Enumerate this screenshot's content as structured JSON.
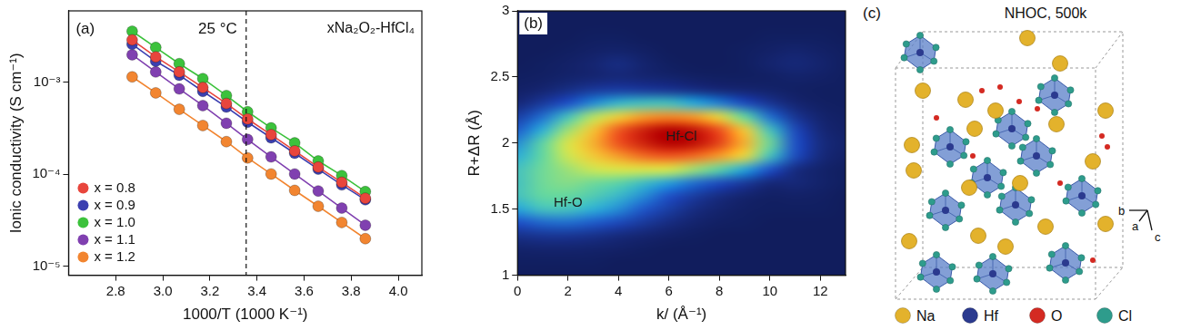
{
  "chart_data": [
    {
      "type": "line",
      "title": "(a)",
      "x_label": "1000/T (1000 K⁻¹)",
      "y_label": "Ionic conductivity (S cm⁻¹)",
      "annotations": [
        "25 °C",
        "xNa₂O₂-HfCl₄"
      ],
      "reference_line_x": 3.354,
      "x": [
        2.87,
        2.97,
        3.07,
        3.17,
        3.27,
        3.36,
        3.46,
        3.56,
        3.66,
        3.76,
        3.86
      ],
      "series": [
        {
          "name": "x = 0.8",
          "color": "#e8453c",
          "values": [
            0.0029,
            0.0019,
            0.0013,
            0.00088,
            0.00059,
            0.0004,
            0.00027,
            0.00018,
            0.00012,
            8.2e-05,
            5.5e-05
          ]
        },
        {
          "name": "x = 0.9",
          "color": "#3b3fb0",
          "values": [
            0.0026,
            0.0017,
            0.0012,
            0.0008,
            0.00054,
            0.00037,
            0.00025,
            0.00017,
            0.000114,
            7.7e-05,
            5.3e-05
          ]
        },
        {
          "name": "x = 1.0",
          "color": "#3cc23c",
          "values": [
            0.0036,
            0.0024,
            0.0016,
            0.0011,
            0.00072,
            0.00048,
            0.00032,
            0.00022,
            0.00014,
            9.7e-05,
            6.5e-05
          ]
        },
        {
          "name": "x = 1.1",
          "color": "#8040b0",
          "values": [
            0.002,
            0.0013,
            0.00085,
            0.00056,
            0.00036,
            0.00024,
            0.000155,
            0.000101,
            6.6e-05,
            4.3e-05,
            2.8e-05
          ]
        },
        {
          "name": "x = 1.2",
          "color": "#f28530",
          "values": [
            0.00115,
            0.00077,
            0.00051,
            0.00034,
            0.000227,
            0.000151,
            0.000101,
            6.7e-05,
            4.5e-05,
            3e-05,
            2e-05
          ]
        }
      ],
      "xlim": [
        2.6,
        4.1
      ],
      "xticks": [
        2.8,
        {
          "value": 3,
          "label": "3.0"
        },
        3.2,
        3.4,
        3.6,
        3.8,
        {
          "value": 4,
          "label": "4.0"
        }
      ],
      "ylim": [
        8e-06,
        0.006
      ],
      "yticks": [
        {
          "value": 1e-05,
          "label": "10⁻⁵"
        },
        {
          "value": 0.0001,
          "label": "10⁻⁴"
        },
        {
          "value": 0.001,
          "label": "10⁻³"
        }
      ],
      "log": "y",
      "grid": false,
      "legend": "lower left",
      "marker": "circle"
    },
    {
      "type": "heatmap",
      "title": "(b)",
      "x_label": "k/ (Å⁻¹)",
      "y_label": "R+ΔR (Å)",
      "x": [
        0,
        1,
        2,
        3,
        4,
        5,
        6,
        7,
        8,
        9,
        10,
        11,
        12,
        13
      ],
      "y": [
        1,
        1.1,
        1.2,
        1.3,
        1.4,
        1.5,
        1.6,
        1.7,
        1.8,
        1.9,
        2,
        2.1,
        2.2,
        2.3,
        2.4,
        2.5,
        2.6,
        2.7,
        2.8,
        2.9,
        3
      ],
      "cells": [
        [
          0.04,
          0.04,
          0.04,
          0.04,
          0.04,
          0.04,
          0.04,
          0.04,
          0.04,
          0.04,
          0.04,
          0.04,
          0.04,
          0.04
        ],
        [
          0.05,
          0.05,
          0.05,
          0.05,
          0.04,
          0.04,
          0.04,
          0.04,
          0.04,
          0.04,
          0.04,
          0.04,
          0.04,
          0.04
        ],
        [
          0.08,
          0.09,
          0.09,
          0.08,
          0.07,
          0.05,
          0.04,
          0.04,
          0.04,
          0.04,
          0.04,
          0.04,
          0.04,
          0.04
        ],
        [
          0.16,
          0.18,
          0.18,
          0.16,
          0.13,
          0.1,
          0.07,
          0.05,
          0.04,
          0.04,
          0.04,
          0.04,
          0.04,
          0.04
        ],
        [
          0.3,
          0.34,
          0.35,
          0.32,
          0.27,
          0.2,
          0.14,
          0.09,
          0.06,
          0.05,
          0.04,
          0.04,
          0.04,
          0.04
        ],
        [
          0.44,
          0.5,
          0.5,
          0.46,
          0.4,
          0.31,
          0.22,
          0.14,
          0.09,
          0.06,
          0.05,
          0.05,
          0.05,
          0.04
        ],
        [
          0.5,
          0.55,
          0.55,
          0.52,
          0.48,
          0.4,
          0.3,
          0.21,
          0.14,
          0.09,
          0.06,
          0.07,
          0.06,
          0.04
        ],
        [
          0.5,
          0.56,
          0.58,
          0.56,
          0.54,
          0.49,
          0.43,
          0.35,
          0.28,
          0.2,
          0.12,
          0.12,
          0.08,
          0.05
        ],
        [
          0.5,
          0.56,
          0.6,
          0.64,
          0.66,
          0.66,
          0.65,
          0.6,
          0.54,
          0.44,
          0.3,
          0.14,
          0.08,
          0.05
        ],
        [
          0.46,
          0.55,
          0.64,
          0.74,
          0.8,
          0.85,
          0.87,
          0.85,
          0.8,
          0.7,
          0.5,
          0.28,
          0.13,
          0.07
        ],
        [
          0.4,
          0.54,
          0.66,
          0.78,
          0.88,
          0.95,
          1,
          0.98,
          0.9,
          0.78,
          0.56,
          0.3,
          0.14,
          0.08
        ],
        [
          0.32,
          0.46,
          0.6,
          0.75,
          0.87,
          0.95,
          1,
          0.97,
          0.88,
          0.74,
          0.5,
          0.27,
          0.12,
          0.07
        ],
        [
          0.22,
          0.35,
          0.5,
          0.62,
          0.72,
          0.8,
          0.82,
          0.8,
          0.7,
          0.55,
          0.35,
          0.18,
          0.09,
          0.06
        ],
        [
          0.12,
          0.2,
          0.3,
          0.4,
          0.48,
          0.5,
          0.5,
          0.45,
          0.38,
          0.28,
          0.18,
          0.1,
          0.06,
          0.05
        ],
        [
          0.07,
          0.1,
          0.15,
          0.2,
          0.22,
          0.2,
          0.18,
          0.15,
          0.12,
          0.1,
          0.08,
          0.06,
          0.05,
          0.05
        ],
        [
          0.05,
          0.06,
          0.08,
          0.1,
          0.12,
          0.1,
          0.08,
          0.06,
          0.05,
          0.05,
          0.06,
          0.08,
          0.07,
          0.05
        ],
        [
          0.04,
          0.05,
          0.07,
          0.1,
          0.14,
          0.09,
          0.05,
          0.04,
          0.04,
          0.05,
          0.09,
          0.12,
          0.09,
          0.05
        ],
        [
          0.04,
          0.04,
          0.05,
          0.07,
          0.08,
          0.06,
          0.04,
          0.04,
          0.04,
          0.05,
          0.07,
          0.09,
          0.07,
          0.05
        ],
        [
          0.04,
          0.04,
          0.04,
          0.05,
          0.05,
          0.04,
          0.04,
          0.04,
          0.04,
          0.04,
          0.05,
          0.05,
          0.05,
          0.04
        ],
        [
          0.04,
          0.04,
          0.04,
          0.04,
          0.04,
          0.04,
          0.04,
          0.04,
          0.04,
          0.04,
          0.04,
          0.04,
          0.04,
          0.04
        ],
        [
          0.04,
          0.04,
          0.04,
          0.04,
          0.04,
          0.04,
          0.04,
          0.04,
          0.04,
          0.04,
          0.04,
          0.04,
          0.04,
          0.04
        ]
      ],
      "xlim": [
        0,
        13
      ],
      "xticks": [
        0,
        2,
        4,
        6,
        8,
        10,
        12
      ],
      "ylim": [
        1,
        3
      ],
      "yticks": [
        1,
        1.5,
        2,
        2.5,
        3
      ],
      "annotations": [
        {
          "text": "Hf-Cl",
          "x": 6.5,
          "y": 2.05
        },
        {
          "text": "Hf-O",
          "x": 2,
          "y": 1.55
        }
      ],
      "grid": false
    }
  ],
  "panel_c": {
    "label": "(c)",
    "title": "NHOC, 500k",
    "legend": [
      {
        "name": "Na",
        "color": "#e3b22c"
      },
      {
        "name": "Hf",
        "color": "#2b3a8f"
      },
      {
        "name": "O",
        "color": "#d42a22"
      },
      {
        "name": "Cl",
        "color": "#2e9c8c"
      }
    ],
    "axes": [
      "b",
      "a",
      "c"
    ]
  }
}
